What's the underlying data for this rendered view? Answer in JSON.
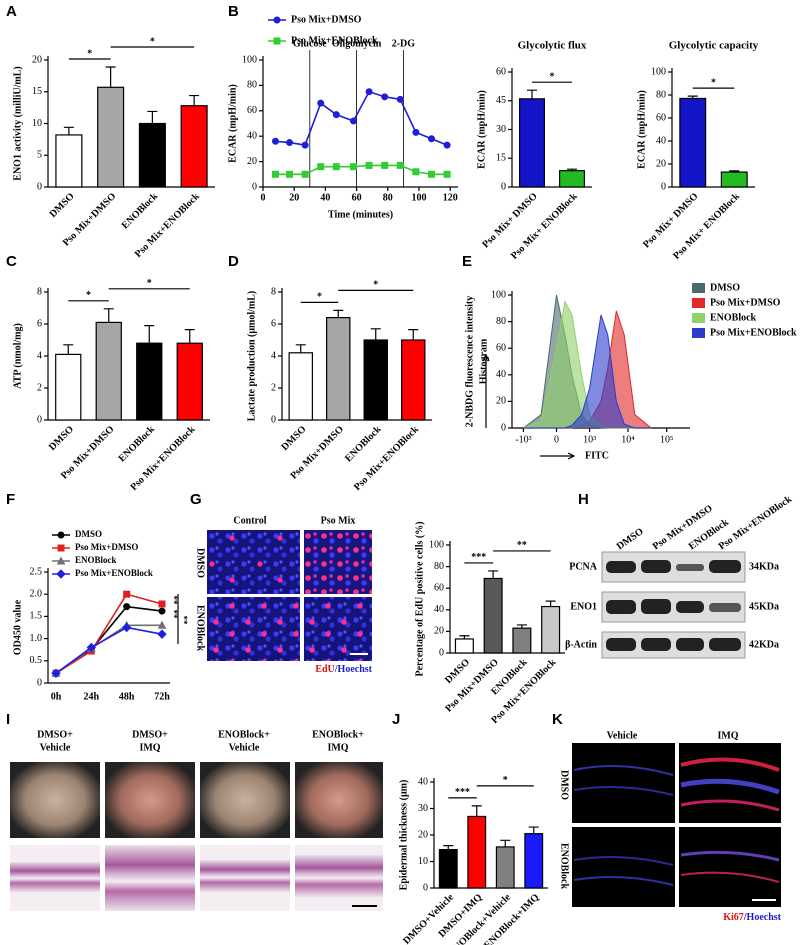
{
  "chart_data": [
    {
      "type": "bar",
      "ylabel": "ENO1 activity (milliU/mL)",
      "categories": [
        "DMSO",
        "Pso Mix+DMSO",
        "ENOBlock",
        "Pso Mix+ENOBlock"
      ],
      "values": [
        8.2,
        15.7,
        10.0,
        12.8
      ],
      "errors": [
        1.2,
        3.2,
        1.9,
        1.6
      ],
      "colors": [
        "#ffffff",
        "#a6a6a6",
        "#000000",
        "#ff0000"
      ],
      "ylim": [
        0,
        20
      ],
      "yticks": [
        0,
        5,
        10,
        15,
        20
      ],
      "significance": [
        {
          "label": "*",
          "pair": [
            "DMSO",
            "Pso Mix+DMSO"
          ]
        },
        {
          "label": "*",
          "pair": [
            "Pso Mix+DMSO",
            "Pso Mix+ENOBlock"
          ]
        }
      ]
    },
    {
      "type": "line",
      "xlabel": "Time (minutes)",
      "ylabel": "ECAR (mpH/min)",
      "x": [
        8,
        17,
        27,
        37,
        47,
        58,
        68,
        78,
        88,
        98,
        108,
        118
      ],
      "series": [
        {
          "name": "Pso Mix+DMSO",
          "color": "#1f1fd6",
          "marker": "circle",
          "values": [
            36,
            35,
            33,
            66,
            57,
            52,
            75,
            71,
            69,
            43,
            38,
            33
          ]
        },
        {
          "name": "Pso Mix+ENOBlock",
          "color": "#33cc33",
          "marker": "square",
          "values": [
            10,
            10,
            10,
            16,
            16,
            16,
            17,
            17,
            17,
            12,
            10,
            10
          ]
        }
      ],
      "xlim": [
        0,
        125
      ],
      "xticks": [
        0,
        20,
        40,
        60,
        80,
        100,
        120
      ],
      "ylim": [
        0,
        100
      ],
      "yticks": [
        0,
        20,
        40,
        60,
        80,
        100
      ],
      "events": [
        {
          "label": "Glucose",
          "x": 30
        },
        {
          "label": "Oligomycin",
          "x": 60
        },
        {
          "label": "2-DG",
          "x": 90
        }
      ]
    },
    {
      "type": "bar",
      "title": "Glycolytic flux",
      "ylabel": "ECAR (mpH/min)",
      "categories": [
        "Pso Mix+ DMSO",
        "Pso Mix+ ENOBlock"
      ],
      "values": [
        46,
        8.5
      ],
      "errors": [
        4.5,
        0.8
      ],
      "colors": [
        "#1414c8",
        "#22bb22"
      ],
      "ylim": [
        0,
        60
      ],
      "yticks": [
        0,
        15,
        30,
        45,
        60
      ],
      "significance": [
        {
          "label": "*",
          "pair": [
            "Pso Mix+ DMSO",
            "Pso Mix+ ENOBlock"
          ]
        }
      ]
    },
    {
      "type": "bar",
      "title": "Glycolytic capacity",
      "ylabel": "ECAR (mpH/min)",
      "categories": [
        "Pso Mix+ DMSO",
        "Pso Mix+ ENOBlock"
      ],
      "values": [
        77,
        13
      ],
      "errors": [
        2,
        1
      ],
      "colors": [
        "#1414c8",
        "#22bb22"
      ],
      "ylim": [
        0,
        100
      ],
      "yticks": [
        0,
        20,
        40,
        60,
        80,
        100
      ],
      "significance": [
        {
          "label": "*",
          "pair": [
            "Pso Mix+ DMSO",
            "Pso Mix+ ENOBlock"
          ]
        }
      ]
    },
    {
      "type": "bar",
      "ylabel": "ATP (nmol/mg)",
      "categories": [
        "DMSO",
        "Pso Mix+DMSO",
        "ENOBlock",
        "Pso Mix+ENOBlock"
      ],
      "values": [
        4.1,
        6.1,
        4.8,
        4.8
      ],
      "errors": [
        0.6,
        0.85,
        1.1,
        0.85
      ],
      "colors": [
        "#ffffff",
        "#a6a6a6",
        "#000000",
        "#ff0000"
      ],
      "ylim": [
        0,
        8
      ],
      "yticks": [
        0,
        2,
        4,
        6,
        8
      ],
      "significance": [
        {
          "label": "*",
          "pair": [
            "DMSO",
            "Pso Mix+DMSO"
          ]
        },
        {
          "label": "*",
          "pair": [
            "Pso Mix+DMSO",
            "Pso Mix+ENOBlock"
          ]
        }
      ]
    },
    {
      "type": "bar",
      "ylabel": "Lactate production (μmol/mL)",
      "categories": [
        "DMSO",
        "Pso Mix+DMSO",
        "ENOBlock",
        "Pso Mix+ENOBlock"
      ],
      "values": [
        4.2,
        6.4,
        5.0,
        5.0
      ],
      "errors": [
        0.5,
        0.45,
        0.7,
        0.65
      ],
      "colors": [
        "#ffffff",
        "#a6a6a6",
        "#000000",
        "#ff0000"
      ],
      "ylim": [
        0,
        8
      ],
      "yticks": [
        0,
        2,
        4,
        6,
        8
      ],
      "significance": [
        {
          "label": "*",
          "pair": [
            "DMSO",
            "Pso Mix+DMSO"
          ]
        },
        {
          "label": "*",
          "pair": [
            "Pso Mix+DMSO",
            "Pso Mix+ENOBlock"
          ]
        }
      ]
    },
    {
      "type": "area",
      "y_title": "2-NBDG fluorescence intensity",
      "ylabel": "Histogram",
      "xlabel": "FITC",
      "xscale": "biexponential",
      "x": [
        -1000,
        -300,
        0,
        150,
        300,
        600,
        1000,
        2000,
        3000,
        5000,
        8000,
        15000,
        40000
      ],
      "series": [
        {
          "name": "DMSO",
          "color": "#4d6b6b",
          "values": [
            0,
            10,
            100,
            70,
            40,
            10,
            2,
            0,
            0,
            0,
            0,
            0,
            0
          ]
        },
        {
          "name": "Pso Mix+DMSO",
          "color": "#e02828",
          "values": [
            0,
            0,
            0,
            0,
            0,
            2,
            5,
            20,
            45,
            88,
            70,
            10,
            0
          ]
        },
        {
          "name": "ENOBlock",
          "color": "#8fd16a",
          "values": [
            0,
            5,
            60,
            95,
            85,
            40,
            10,
            2,
            0,
            0,
            0,
            0,
            0
          ]
        },
        {
          "name": "Pso Mix+ENOBlock",
          "color": "#2a3ccc",
          "values": [
            0,
            0,
            0,
            0,
            2,
            10,
            30,
            85,
            70,
            20,
            3,
            0,
            0
          ]
        }
      ],
      "xlim": [
        -2000,
        400000
      ],
      "xticks": [
        {
          "value": -1000,
          "label": "-10³"
        },
        0,
        {
          "value": 1000,
          "label": "10³"
        },
        {
          "value": 10000,
          "label": "10⁴"
        },
        {
          "value": 100000,
          "label": "10⁵"
        }
      ],
      "ylim": [
        0,
        100
      ],
      "yticks": [
        0,
        20,
        40,
        60,
        80,
        100
      ]
    },
    {
      "type": "line",
      "ylabel": "OD450 value",
      "categories": [
        "0h",
        "24h",
        "48h",
        "72h"
      ],
      "series": [
        {
          "name": "DMSO",
          "color": "#000000",
          "marker": "circle",
          "values": [
            0.22,
            0.75,
            1.72,
            1.62
          ]
        },
        {
          "name": "Pso Mix+DMSO",
          "color": "#e02020",
          "marker": "square",
          "values": [
            0.22,
            0.72,
            2.0,
            1.78
          ]
        },
        {
          "name": "ENOBlock",
          "color": "#707070",
          "marker": "triangle",
          "values": [
            0.22,
            0.78,
            1.3,
            1.3
          ]
        },
        {
          "name": "Pso Mix+ENOBlock",
          "color": "#2020e0",
          "marker": "diamond",
          "values": [
            0.22,
            0.8,
            1.25,
            1.1
          ]
        }
      ],
      "ylim": [
        0,
        2.5
      ],
      "yticks": [
        0,
        0.5,
        {
          "value": 1,
          "label": "1.0"
        },
        1.5,
        {
          "value": 2,
          "label": "2.0"
        },
        2.5
      ],
      "annotations": [
        "**",
        "**",
        "**"
      ]
    },
    {
      "type": "bar",
      "ylabel": "Percentage of EdU positive cells (%)",
      "categories": [
        "DMSO",
        "Pso Mix+DMSO",
        "ENOBlock",
        "Pso Mix+ENOBlock"
      ],
      "values": [
        13,
        69,
        23,
        43
      ],
      "errors": [
        3,
        7,
        3,
        5
      ],
      "colors": [
        "#ffffff",
        "#595959",
        "#808080",
        "#c8c8c8"
      ],
      "ylim": [
        0,
        100
      ],
      "yticks": [
        0,
        20,
        40,
        60,
        80,
        100
      ],
      "significance": [
        {
          "label": "***",
          "pair": [
            "DMSO",
            "Pso Mix+DMSO"
          ]
        },
        {
          "label": "**",
          "pair": [
            "Pso Mix+DMSO",
            "Pso Mix+ENOBlock"
          ]
        }
      ]
    },
    {
      "type": "bar",
      "ylabel": "Epidermal thickness (μm)",
      "categories": [
        "DMSO+Vehicle",
        "DMSO+IMQ",
        "ENOBlock+Vehicle",
        "ENOBlock+IMQ"
      ],
      "values": [
        14.5,
        27,
        15.5,
        20.5
      ],
      "errors": [
        1.5,
        4,
        2.5,
        2.5
      ],
      "colors": [
        "#000000",
        "#ff0000",
        "#808080",
        "#1a1aff"
      ],
      "ylim": [
        0,
        40
      ],
      "yticks": [
        0,
        10,
        20,
        30,
        40
      ],
      "significance": [
        {
          "label": "***",
          "pair": [
            "DMSO+Vehicle",
            "DMSO+IMQ"
          ]
        },
        {
          "label": "*",
          "pair": [
            "DMSO+IMQ",
            "ENOBlock+IMQ"
          ]
        }
      ]
    }
  ],
  "panel_labels": [
    "A",
    "B",
    "C",
    "D",
    "E",
    "F",
    "G",
    "H",
    "I",
    "J",
    "K"
  ],
  "panel_G": {
    "columns": [
      "Control",
      "Pso Mix"
    ],
    "rows": [
      "DMSO",
      "ENOBlock"
    ],
    "stain": [
      "EdU",
      "/Hoechst"
    ]
  },
  "panel_H": {
    "lanes": [
      "DMSO",
      "Pso Mix+DMSO",
      "ENOBlock",
      "Pso Mix+ENOBlock"
    ],
    "rows": [
      {
        "protein": "PCNA",
        "size": "34KDa"
      },
      {
        "protein": "ENO1",
        "size": "45KDa"
      },
      {
        "protein": "β-Actin",
        "size": "42KDa"
      }
    ]
  },
  "panel_I": {
    "groups": [
      [
        "DMSO+",
        "Vehicle"
      ],
      [
        "DMSO+",
        "IMQ"
      ],
      [
        "ENOBlock+",
        "Vehicle"
      ],
      [
        "ENOBlock+",
        "IMQ"
      ]
    ]
  },
  "panel_K": {
    "columns": [
      "Vehicle",
      "IMQ"
    ],
    "rows": [
      "DMSO",
      "ENOBlock"
    ],
    "stain": [
      "Ki67",
      "/Hoechst"
    ]
  }
}
